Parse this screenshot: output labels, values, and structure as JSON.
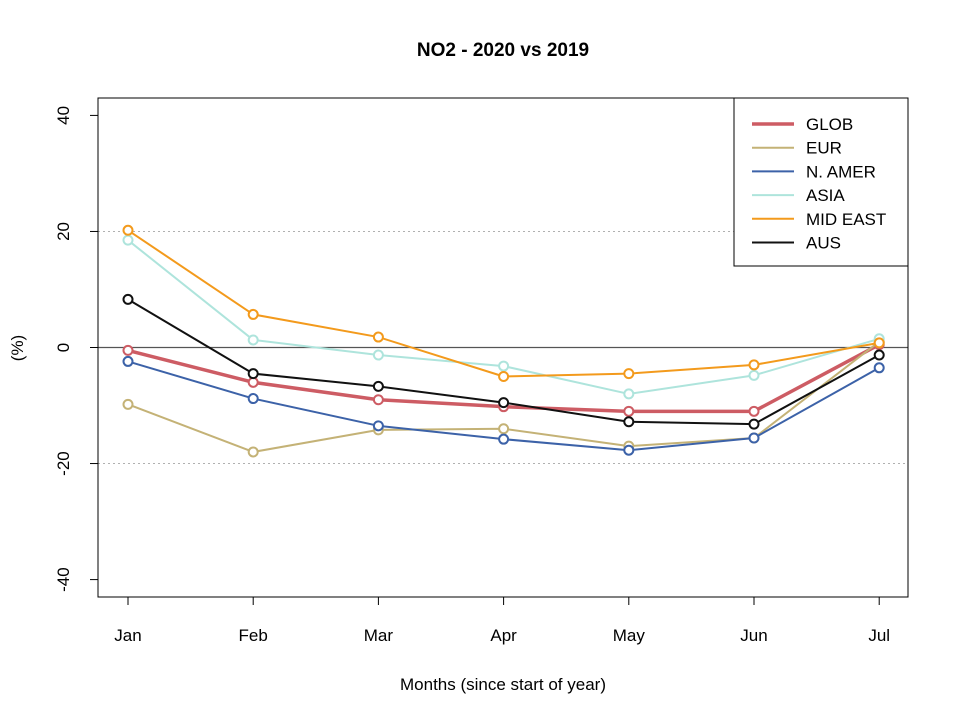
{
  "chart_data": {
    "type": "line",
    "title": "NO2 - 2020 vs 2019",
    "xlabel": "Months (since start of year)",
    "ylabel": "(%)",
    "categories": [
      "Jan",
      "Feb",
      "Mar",
      "Apr",
      "May",
      "Jun",
      "Jul"
    ],
    "ylim": [
      -43,
      43
    ],
    "yticks": [
      -40,
      -20,
      0,
      20,
      40
    ],
    "ytick_labels": [
      "-40",
      "-20",
      "0",
      "20",
      "40"
    ],
    "gridlines": [
      20,
      -20
    ],
    "zero_line": 0,
    "legend_position": "top-right",
    "series": [
      {
        "name": "GLOB",
        "color": "#cd5c64",
        "width": 3.5,
        "values": [
          -0.5,
          -6,
          -9,
          -10.2,
          -11,
          -11,
          0.5
        ]
      },
      {
        "name": "EUR",
        "color": "#c4b276",
        "width": 2,
        "values": [
          -9.8,
          -18,
          -14.2,
          -14,
          -17,
          -15.6,
          1
        ]
      },
      {
        "name": "N. AMER",
        "color": "#3c62a8",
        "width": 2,
        "values": [
          -2.4,
          -8.8,
          -13.5,
          -15.8,
          -17.7,
          -15.6,
          -3.5
        ]
      },
      {
        "name": "ASIA",
        "color": "#aee4dc",
        "width": 2,
        "values": [
          18.5,
          1.3,
          -1.3,
          -3.2,
          -8,
          -4.8,
          1.5
        ]
      },
      {
        "name": "MID EAST",
        "color": "#f39a1c",
        "width": 2,
        "values": [
          20.2,
          5.7,
          1.8,
          -5,
          -4.5,
          -3,
          0.8
        ]
      },
      {
        "name": "AUS",
        "color": "#111111",
        "width": 2,
        "values": [
          8.3,
          -4.5,
          -6.7,
          -9.5,
          -12.8,
          -13.2,
          -1.3
        ]
      }
    ]
  }
}
